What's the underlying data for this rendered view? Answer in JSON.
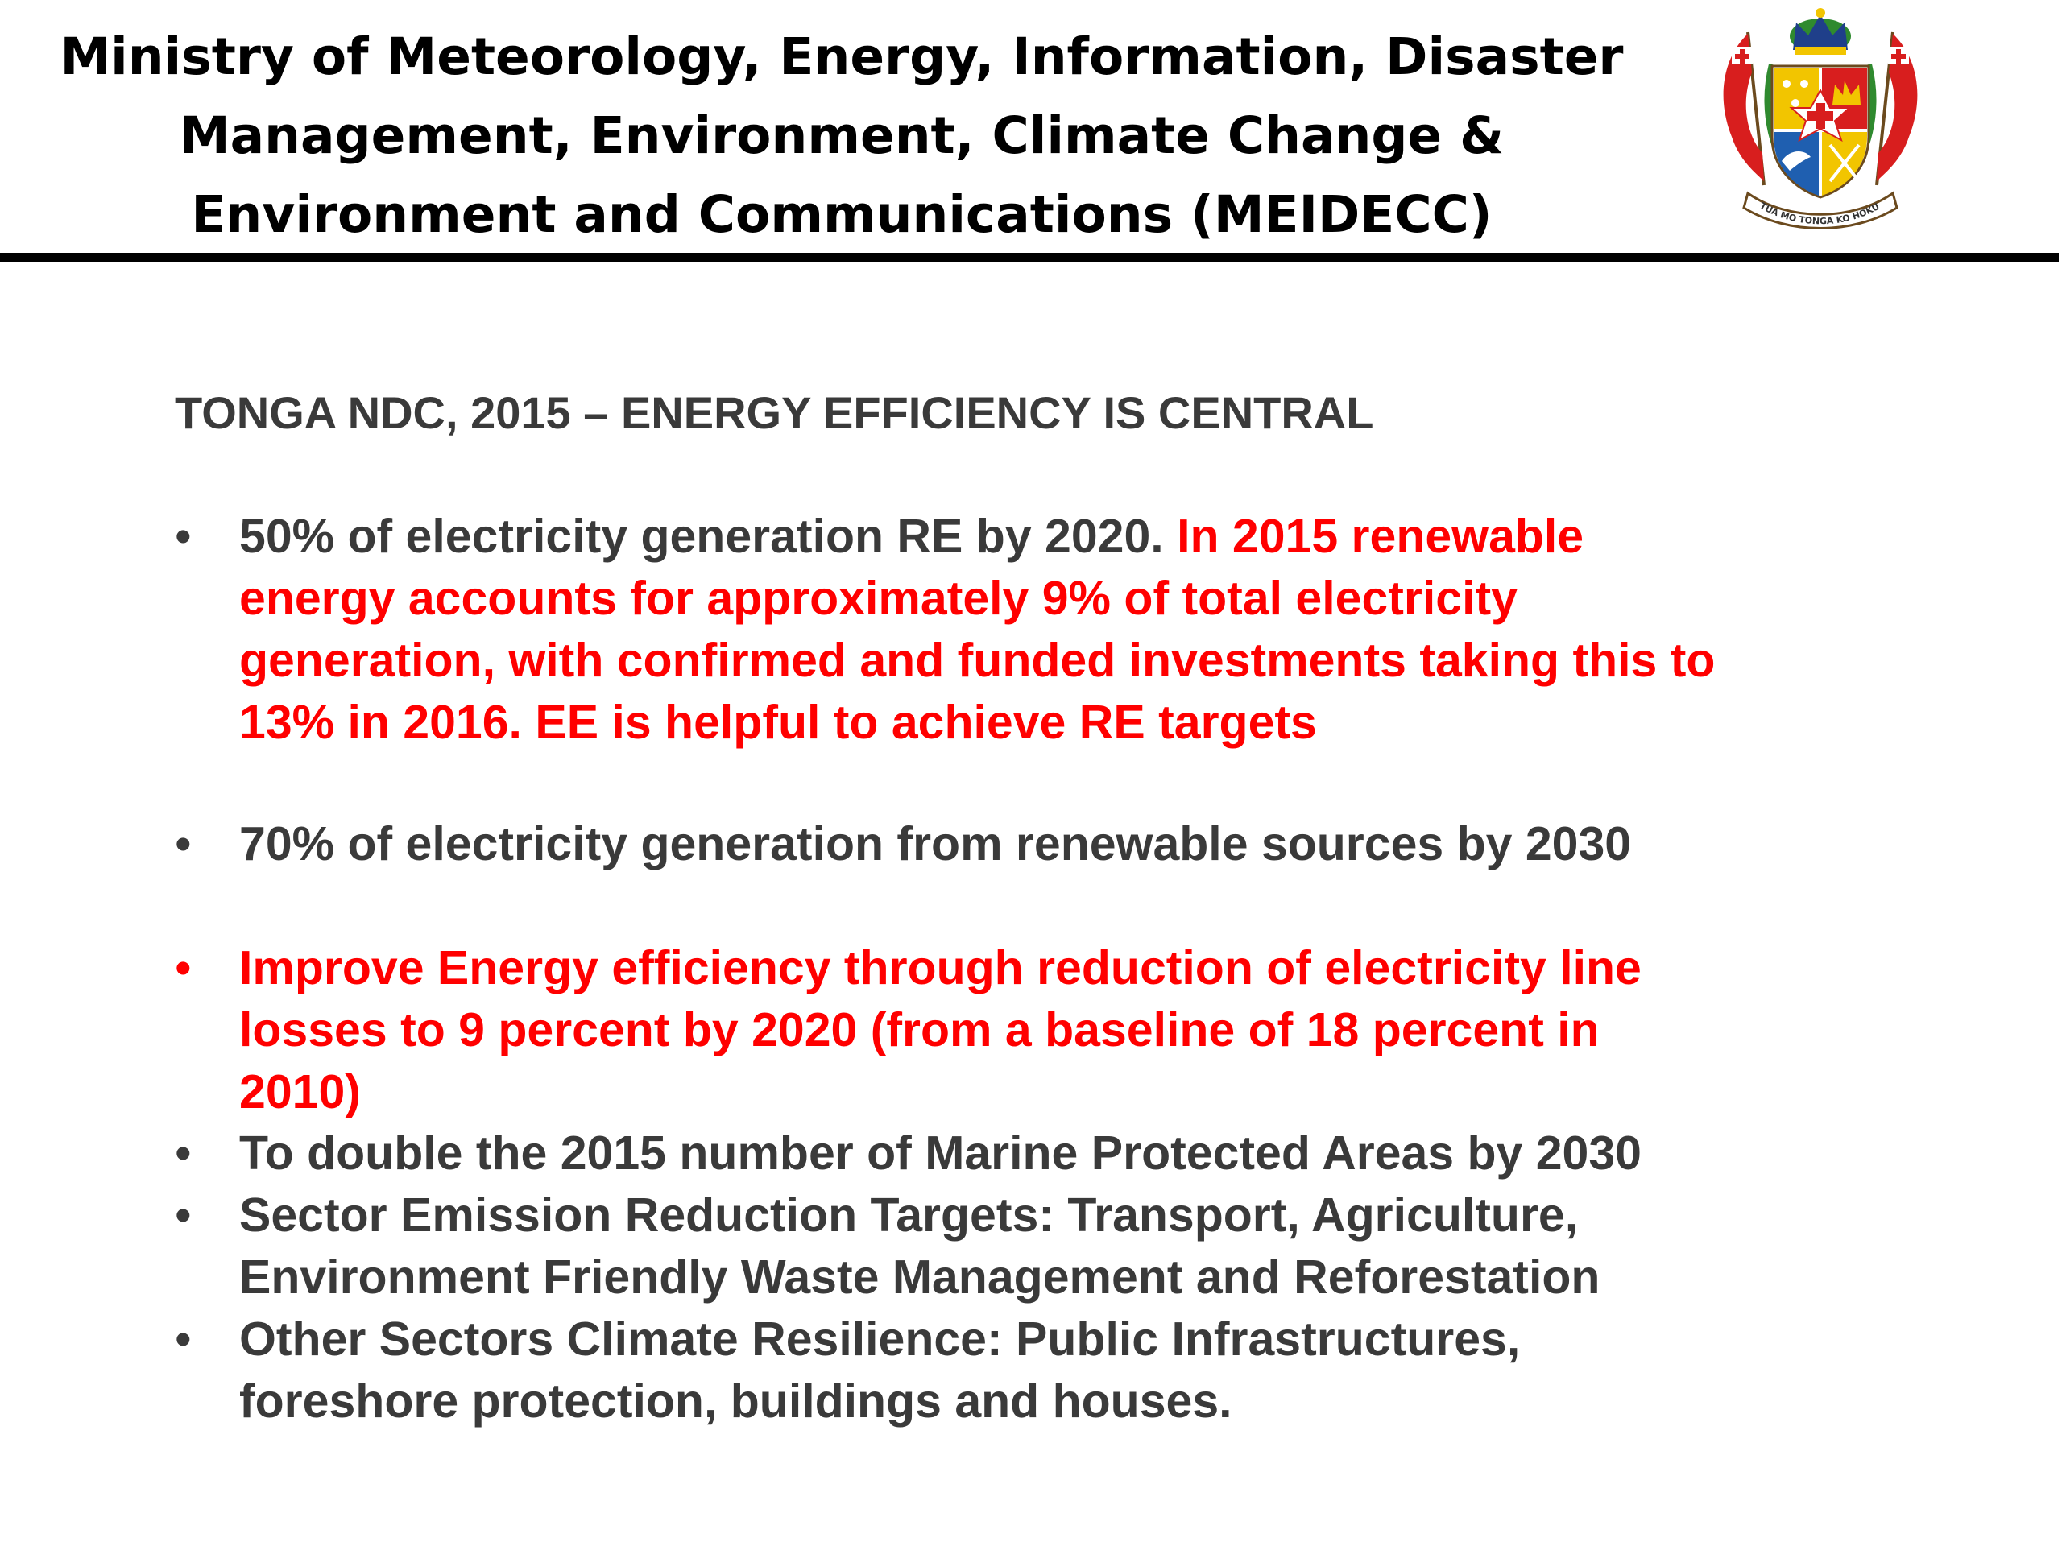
{
  "header": {
    "title_lines": [
      "Ministry of Meteorology, Energy, Information, Disaster",
      "Management, Environment, Climate Change &",
      "Environment and Communications (MEIDECC)"
    ],
    "crest": {
      "icon": "coat-of-arms-icon",
      "motto": "KO E OTUA MO TONGA KO HOKU TOFI'A",
      "colors": {
        "gold": "#f2c500",
        "red": "#d81e1e",
        "blue": "#1f5fb0",
        "green": "#2f8a2f",
        "white": "#ffffff"
      }
    }
  },
  "slide": {
    "heading": "TONGA NDC, 2015 – ENERGY EFFICIENCY IS CENTRAL",
    "bullet_glyph": "•",
    "bullets": [
      {
        "color": "gray",
        "lines": [
          {
            "gray": "50% of electricity generation RE by 2020. ",
            "red": "In 2015 renewable"
          },
          {
            "gray": "",
            "red": "energy accounts for approximately 9% of total electricity"
          },
          {
            "gray": "",
            "red": "generation, with confirmed and funded investments taking this to"
          },
          {
            "gray": "",
            "red": "13% in 2016. EE is helpful to achieve RE targets"
          }
        ]
      },
      {
        "color": "gray",
        "lines": [
          {
            "gray": "70% of electricity generation from renewable sources by 2030",
            "red": ""
          }
        ]
      },
      {
        "color": "red",
        "lines": [
          {
            "gray": "",
            "red": "Improve Energy efficiency through reduction of electricity line"
          },
          {
            "gray": "",
            "red": "losses to 9 percent by 2020 (from a baseline of 18 percent in"
          },
          {
            "gray": "",
            "red": "2010)"
          }
        ]
      },
      {
        "color": "gray",
        "lines": [
          {
            "gray": "To double the 2015 number of Marine Protected Areas by 2030",
            "red": ""
          }
        ]
      },
      {
        "color": "gray",
        "lines": [
          {
            "gray": "Sector Emission Reduction Targets: Transport, Agriculture,",
            "red": ""
          },
          {
            "gray": "Environment Friendly Waste Management and Reforestation",
            "red": ""
          }
        ]
      },
      {
        "color": "gray",
        "lines": [
          {
            "gray": "Other Sectors Climate Resilience: Public Infrastructures,",
            "red": ""
          },
          {
            "gray": "foreshore protection, buildings and houses.",
            "red": ""
          }
        ]
      }
    ]
  }
}
